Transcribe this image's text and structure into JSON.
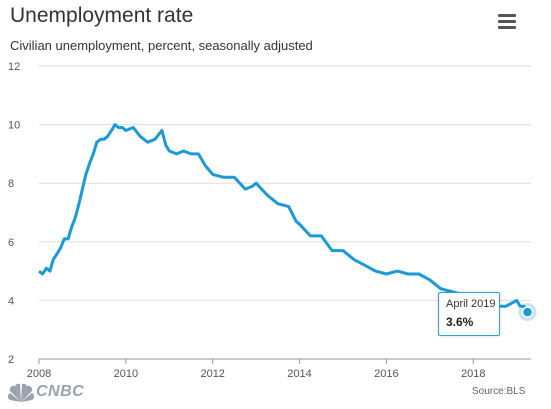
{
  "header": {
    "title": "Unemployment rate",
    "subtitle": "Civilian unemployment, percent, seasonally adjusted"
  },
  "menu_icon": "hamburger-menu-icon",
  "footer": {
    "brand": "CNBC",
    "source": "Source:BLS"
  },
  "tooltip": {
    "label": "April 2019",
    "value": "3.6%"
  },
  "colors": {
    "line": "#1a9ad6",
    "grid": "#dddddd",
    "text": "#333333"
  },
  "chart_data": {
    "type": "line",
    "title": "Unemployment rate",
    "subtitle": "Civilian unemployment, percent, seasonally adjusted",
    "xlabel": "",
    "ylabel": "",
    "xlim": [
      2008,
      2019.33
    ],
    "ylim": [
      2,
      12
    ],
    "yticks": [
      2,
      4,
      6,
      8,
      10,
      12
    ],
    "xticks": [
      2008,
      2010,
      2012,
      2014,
      2016,
      2018
    ],
    "grid": true,
    "series": [
      {
        "x": [
          2008.0,
          2008.08,
          2008.17,
          2008.25,
          2008.33,
          2008.42,
          2008.5,
          2008.58,
          2008.67,
          2008.75,
          2008.83,
          2008.92,
          2009.0,
          2009.08,
          2009.17,
          2009.25,
          2009.33,
          2009.42,
          2009.5,
          2009.58,
          2009.67,
          2009.75,
          2009.83,
          2009.92,
          2010.0,
          2010.17,
          2010.33,
          2010.5,
          2010.67,
          2010.83,
          2010.92,
          2011.0,
          2011.17,
          2011.33,
          2011.5,
          2011.67,
          2011.83,
          2012.0,
          2012.25,
          2012.5,
          2012.75,
          2012.92,
          2013.0,
          2013.25,
          2013.5,
          2013.75,
          2013.92,
          2014.0,
          2014.25,
          2014.5,
          2014.75,
          2015.0,
          2015.25,
          2015.5,
          2015.75,
          2016.0,
          2016.25,
          2016.5,
          2016.75,
          2017.0,
          2017.25,
          2017.5,
          2017.75,
          2018.0,
          2018.25,
          2018.5,
          2018.75,
          2019.0,
          2019.08,
          2019.17,
          2019.25
        ],
        "y": [
          5.0,
          4.9,
          5.1,
          5.0,
          5.4,
          5.6,
          5.8,
          6.1,
          6.1,
          6.5,
          6.8,
          7.3,
          7.8,
          8.3,
          8.7,
          9.0,
          9.4,
          9.5,
          9.5,
          9.6,
          9.8,
          10.0,
          9.9,
          9.9,
          9.8,
          9.9,
          9.6,
          9.4,
          9.5,
          9.8,
          9.3,
          9.1,
          9.0,
          9.1,
          9.0,
          9.0,
          8.6,
          8.3,
          8.2,
          8.2,
          7.8,
          7.9,
          8.0,
          7.6,
          7.3,
          7.2,
          6.7,
          6.6,
          6.2,
          6.2,
          5.7,
          5.7,
          5.4,
          5.2,
          5.0,
          4.9,
          5.0,
          4.9,
          4.9,
          4.7,
          4.4,
          4.3,
          4.2,
          4.1,
          3.9,
          3.8,
          3.8,
          4.0,
          3.8,
          3.8,
          3.6
        ]
      }
    ],
    "highlight": {
      "x": 2019.25,
      "y": 3.6
    }
  }
}
